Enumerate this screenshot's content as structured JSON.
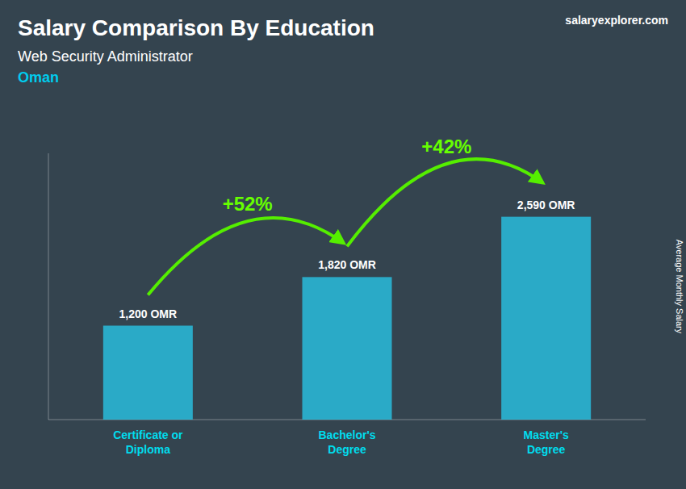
{
  "chart_data": {
    "type": "bar",
    "title": "Salary Comparison By Education",
    "subtitle": "Web Security Administrator",
    "annotations": [
      "+52%",
      "+42%",
      "Oman",
      "salaryexplorer.com"
    ],
    "ylabel": "Average Monthly Salary",
    "categories": [
      "Certificate or\nDiploma",
      "Bachelor's\nDegree",
      "Master's\nDegree"
    ],
    "values": [
      1200,
      1820,
      2590
    ],
    "value_labels": [
      "1,200 OMR",
      "1,820 OMR",
      "2,590 OMR"
    ],
    "data_labels": true,
    "color": "#29b8d8",
    "ylim": [
      0,
      3400
    ],
    "yticks": [],
    "tick_labels": "x"
  }
}
